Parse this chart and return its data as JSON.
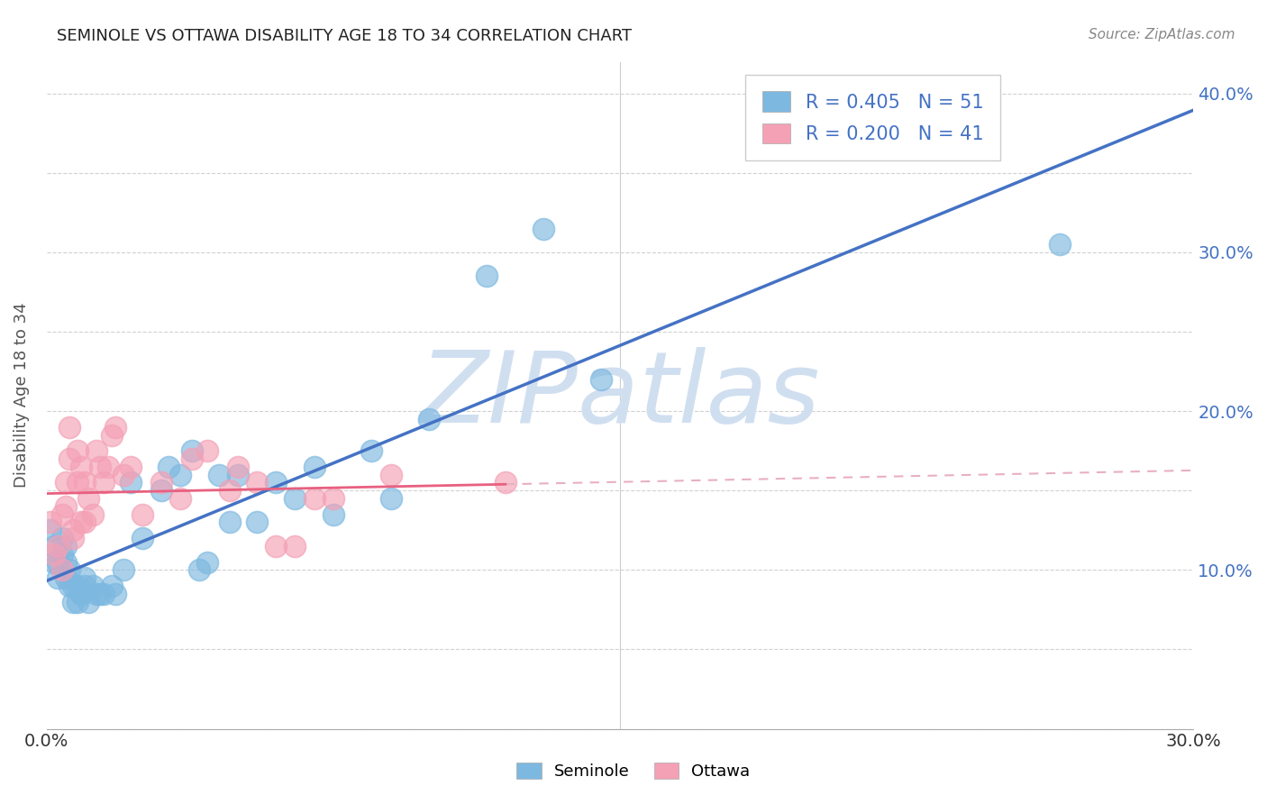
{
  "title": "SEMINOLE VS OTTAWA DISABILITY AGE 18 TO 34 CORRELATION CHART",
  "source": "Source: ZipAtlas.com",
  "ylabel": "Disability Age 18 to 34",
  "xlim": [
    0.0,
    0.3
  ],
  "ylim": [
    0.0,
    0.42
  ],
  "xticks": [
    0.0,
    0.03,
    0.06,
    0.09,
    0.12,
    0.15,
    0.18,
    0.21,
    0.24,
    0.27,
    0.3
  ],
  "yticks_left": [
    0.0,
    0.05,
    0.1,
    0.15,
    0.2,
    0.25,
    0.3,
    0.35,
    0.4
  ],
  "yticks_right": [
    0.1,
    0.2,
    0.3,
    0.4
  ],
  "seminole_color": "#7db8e0",
  "ottawa_color": "#f4a0b5",
  "seminole_line_color": "#4472c4",
  "ottawa_line_color": "#e86080",
  "ottawa_dash_color": "#e8b0c0",
  "seminole_R": 0.405,
  "seminole_N": 51,
  "ottawa_R": 0.2,
  "ottawa_N": 41,
  "watermark": "ZIPatlas",
  "watermark_color": "#d0dff0",
  "seminole_x": [
    0.001,
    0.002,
    0.002,
    0.003,
    0.003,
    0.004,
    0.004,
    0.005,
    0.005,
    0.005,
    0.006,
    0.006,
    0.007,
    0.007,
    0.008,
    0.008,
    0.009,
    0.009,
    0.01,
    0.01,
    0.011,
    0.012,
    0.013,
    0.014,
    0.015,
    0.017,
    0.018,
    0.02,
    0.022,
    0.025,
    0.03,
    0.032,
    0.035,
    0.038,
    0.04,
    0.042,
    0.045,
    0.048,
    0.05,
    0.055,
    0.06,
    0.065,
    0.07,
    0.075,
    0.085,
    0.09,
    0.1,
    0.115,
    0.13,
    0.145,
    0.265
  ],
  "seminole_y": [
    0.125,
    0.105,
    0.115,
    0.095,
    0.105,
    0.12,
    0.11,
    0.095,
    0.105,
    0.115,
    0.1,
    0.09,
    0.08,
    0.09,
    0.08,
    0.09,
    0.085,
    0.085,
    0.09,
    0.095,
    0.08,
    0.09,
    0.085,
    0.085,
    0.085,
    0.09,
    0.085,
    0.1,
    0.155,
    0.12,
    0.15,
    0.165,
    0.16,
    0.175,
    0.1,
    0.105,
    0.16,
    0.13,
    0.16,
    0.13,
    0.155,
    0.145,
    0.165,
    0.135,
    0.175,
    0.145,
    0.195,
    0.285,
    0.315,
    0.22,
    0.305
  ],
  "ottawa_x": [
    0.001,
    0.002,
    0.003,
    0.004,
    0.004,
    0.005,
    0.005,
    0.006,
    0.006,
    0.007,
    0.007,
    0.008,
    0.008,
    0.009,
    0.009,
    0.01,
    0.01,
    0.011,
    0.012,
    0.013,
    0.014,
    0.015,
    0.016,
    0.017,
    0.018,
    0.02,
    0.022,
    0.025,
    0.03,
    0.035,
    0.038,
    0.042,
    0.048,
    0.05,
    0.055,
    0.06,
    0.065,
    0.07,
    0.075,
    0.09,
    0.12
  ],
  "ottawa_y": [
    0.13,
    0.11,
    0.115,
    0.1,
    0.135,
    0.14,
    0.155,
    0.17,
    0.19,
    0.12,
    0.125,
    0.175,
    0.155,
    0.13,
    0.165,
    0.13,
    0.155,
    0.145,
    0.135,
    0.175,
    0.165,
    0.155,
    0.165,
    0.185,
    0.19,
    0.16,
    0.165,
    0.135,
    0.155,
    0.145,
    0.17,
    0.175,
    0.15,
    0.165,
    0.155,
    0.115,
    0.115,
    0.145,
    0.145,
    0.16,
    0.155
  ],
  "background_color": "#ffffff",
  "grid_color": "#cccccc"
}
